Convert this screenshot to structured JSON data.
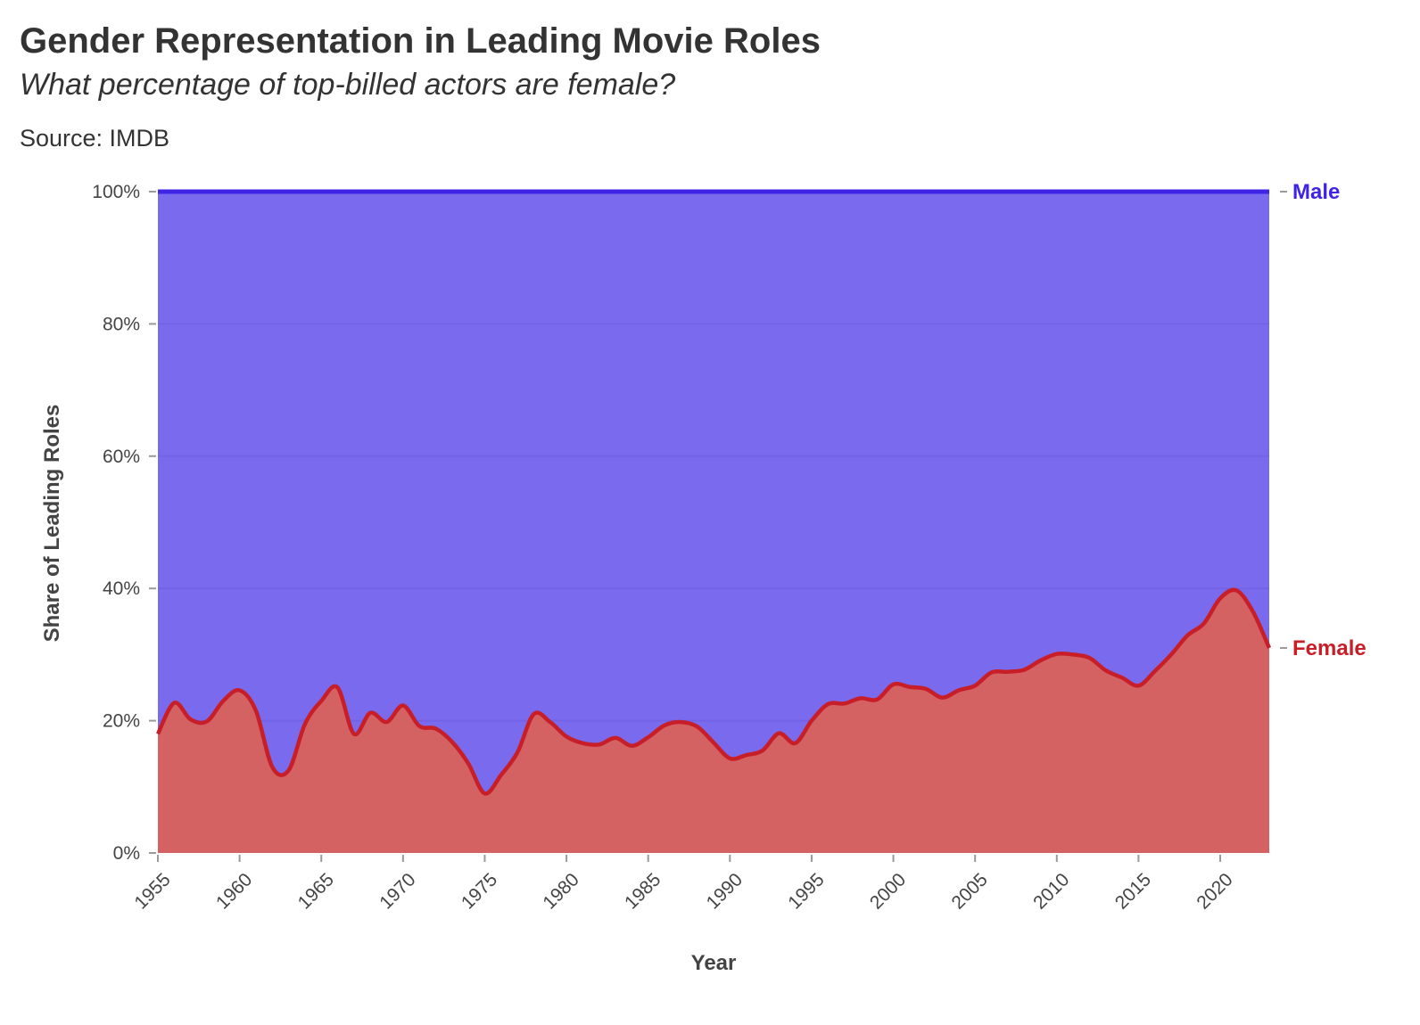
{
  "title": "Gender Representation in Leading Movie Roles",
  "subtitle": "What percentage of top-billed actors are female?",
  "caption": "Source: IMDB",
  "colors": {
    "male_fill": "#7A6AEE",
    "male_line": "#3F24E6",
    "female_fill": "#D46262",
    "female_line": "#C81E28",
    "grid": "#6E5EE0",
    "axis_text": "#444444"
  },
  "chart_data": {
    "type": "area",
    "xlabel": "Year",
    "ylabel": "Share of Leading Roles",
    "xlim": [
      1955,
      2023
    ],
    "ylim": [
      0,
      100
    ],
    "y_ticks": [
      "0%",
      "20%",
      "40%",
      "60%",
      "80%",
      "100%"
    ],
    "x_ticks": [
      "1955",
      "1960",
      "1965",
      "1970",
      "1975",
      "1980",
      "1985",
      "1990",
      "1995",
      "2000",
      "2005",
      "2010",
      "2015",
      "2020"
    ],
    "grid": true,
    "stacked": true,
    "x": [
      1955,
      1956,
      1957,
      1958,
      1959,
      1960,
      1961,
      1962,
      1963,
      1964,
      1965,
      1966,
      1967,
      1968,
      1969,
      1970,
      1971,
      1972,
      1973,
      1974,
      1975,
      1976,
      1977,
      1978,
      1979,
      1980,
      1981,
      1982,
      1983,
      1984,
      1985,
      1986,
      1987,
      1988,
      1989,
      1990,
      1991,
      1992,
      1993,
      1994,
      1995,
      1996,
      1997,
      1998,
      1999,
      2000,
      2001,
      2002,
      2003,
      2004,
      2005,
      2006,
      2007,
      2008,
      2009,
      2010,
      2011,
      2012,
      2013,
      2014,
      2015,
      2016,
      2017,
      2018,
      2019,
      2020,
      2021,
      2022,
      2023
    ],
    "series": [
      {
        "name": "Female",
        "values": [
          18.0,
          22.7,
          20.2,
          19.9,
          23.0,
          24.6,
          21.5,
          13.0,
          12.5,
          19.5,
          23.0,
          25.0,
          18.0,
          21.2,
          19.8,
          22.3,
          19.2,
          18.8,
          16.8,
          13.5,
          9.0,
          11.8,
          15.2,
          21.0,
          19.8,
          17.6,
          16.6,
          16.4,
          17.4,
          16.2,
          17.5,
          19.3,
          19.8,
          19.1,
          16.7,
          14.3,
          14.8,
          15.5,
          18.1,
          16.6,
          20.0,
          22.5,
          22.6,
          23.4,
          23.2,
          25.5,
          25.1,
          24.8,
          23.5,
          24.6,
          25.3,
          27.3,
          27.4,
          27.7,
          29.1,
          30.1,
          30.0,
          29.5,
          27.6,
          26.5,
          25.3,
          27.5,
          30.0,
          32.9,
          34.7,
          38.5,
          39.7,
          36.5,
          31.0
        ]
      },
      {
        "name": "Male",
        "values": [
          82.0,
          77.3,
          79.8,
          80.1,
          77.0,
          75.4,
          78.5,
          87.0,
          87.5,
          80.5,
          77.0,
          75.0,
          82.0,
          78.8,
          80.2,
          77.7,
          80.8,
          81.2,
          83.2,
          86.5,
          91.0,
          88.2,
          84.8,
          79.0,
          80.2,
          82.4,
          83.4,
          83.6,
          82.6,
          83.8,
          82.5,
          80.7,
          80.2,
          80.9,
          83.3,
          85.7,
          85.2,
          84.5,
          81.9,
          83.4,
          80.0,
          77.5,
          77.4,
          76.6,
          76.8,
          74.5,
          74.9,
          75.2,
          76.5,
          75.4,
          74.7,
          72.7,
          72.6,
          72.3,
          70.9,
          69.9,
          70.0,
          70.5,
          72.4,
          73.5,
          74.7,
          72.5,
          70.0,
          67.1,
          65.3,
          61.5,
          60.3,
          63.5,
          69.0
        ]
      }
    ]
  }
}
